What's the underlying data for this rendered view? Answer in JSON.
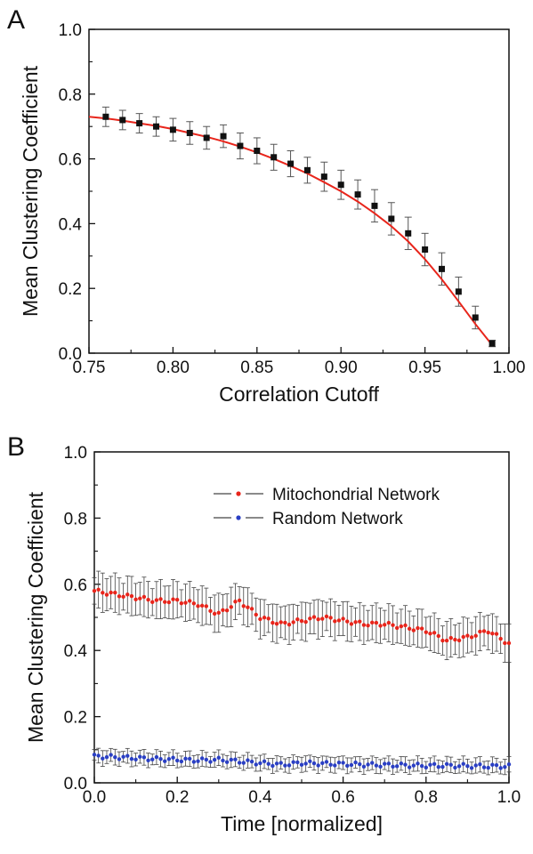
{
  "chart_data": [
    {
      "panel": "A",
      "type": "scatter",
      "xlabel": "Correlation Cutoff",
      "ylabel": "Mean Clustering Coefficient",
      "xlim": [
        0.75,
        1.0
      ],
      "ylim": [
        0.0,
        1.0
      ],
      "xticks": [
        "0.75",
        "0.80",
        "0.85",
        "0.90",
        "0.95",
        "1.00"
      ],
      "yticks": [
        "0.0",
        "0.2",
        "0.4",
        "0.6",
        "0.8",
        "1.0"
      ],
      "grid": false,
      "colors": {
        "points": "#111111",
        "fit": "#e8251b",
        "errorbars": "#555555"
      },
      "x": [
        0.76,
        0.77,
        0.78,
        0.79,
        0.8,
        0.81,
        0.82,
        0.83,
        0.84,
        0.85,
        0.86,
        0.87,
        0.88,
        0.89,
        0.9,
        0.91,
        0.92,
        0.93,
        0.94,
        0.95,
        0.96,
        0.97,
        0.98,
        0.99
      ],
      "y": [
        0.73,
        0.72,
        0.71,
        0.7,
        0.69,
        0.68,
        0.665,
        0.67,
        0.64,
        0.625,
        0.605,
        0.585,
        0.565,
        0.545,
        0.52,
        0.49,
        0.455,
        0.415,
        0.37,
        0.32,
        0.26,
        0.19,
        0.11,
        0.03
      ],
      "yerr": [
        0.03,
        0.03,
        0.03,
        0.03,
        0.035,
        0.035,
        0.035,
        0.035,
        0.04,
        0.04,
        0.04,
        0.04,
        0.04,
        0.045,
        0.045,
        0.045,
        0.05,
        0.05,
        0.05,
        0.05,
        0.05,
        0.045,
        0.035,
        0.01
      ],
      "fit_x": [
        0.75,
        0.76,
        0.77,
        0.78,
        0.79,
        0.8,
        0.81,
        0.82,
        0.83,
        0.84,
        0.85,
        0.86,
        0.87,
        0.88,
        0.89,
        0.9,
        0.91,
        0.92,
        0.93,
        0.94,
        0.95,
        0.96,
        0.97,
        0.98,
        0.99
      ],
      "fit_y": [
        0.73,
        0.725,
        0.718,
        0.71,
        0.702,
        0.692,
        0.68,
        0.668,
        0.654,
        0.638,
        0.62,
        0.6,
        0.578,
        0.555,
        0.528,
        0.5,
        0.468,
        0.432,
        0.392,
        0.345,
        0.29,
        0.228,
        0.16,
        0.09,
        0.025
      ]
    },
    {
      "panel": "B",
      "type": "line",
      "xlabel": "Time [normalized]",
      "ylabel": "Mean Clustering Coefficient",
      "xlim": [
        0.0,
        1.0
      ],
      "ylim": [
        0.0,
        1.0
      ],
      "xticks": [
        "0.0",
        "0.2",
        "0.4",
        "0.6",
        "0.8",
        "1.0"
      ],
      "yticks": [
        "0.0",
        "0.2",
        "0.4",
        "0.6",
        "0.8",
        "1.0"
      ],
      "grid": false,
      "legend_position": "top-right",
      "x": [
        0.0,
        0.05,
        0.1,
        0.15,
        0.2,
        0.25,
        0.3,
        0.35,
        0.4,
        0.45,
        0.5,
        0.55,
        0.6,
        0.65,
        0.7,
        0.75,
        0.8,
        0.85,
        0.9,
        0.95,
        1.0
      ],
      "series": [
        {
          "name": "Mitochondrial Network",
          "color": "#e8251b",
          "values": [
            0.58,
            0.57,
            0.56,
            0.55,
            0.55,
            0.54,
            0.51,
            0.55,
            0.5,
            0.48,
            0.49,
            0.5,
            0.49,
            0.48,
            0.48,
            0.47,
            0.46,
            0.43,
            0.44,
            0.46,
            0.42
          ],
          "error": 0.05
        },
        {
          "name": "Random Network",
          "color": "#2a3fc4",
          "values": [
            0.08,
            0.078,
            0.075,
            0.072,
            0.07,
            0.068,
            0.07,
            0.065,
            0.06,
            0.055,
            0.06,
            0.058,
            0.057,
            0.055,
            0.054,
            0.053,
            0.052,
            0.052,
            0.051,
            0.05,
            0.05
          ],
          "error": 0.02
        }
      ]
    }
  ]
}
